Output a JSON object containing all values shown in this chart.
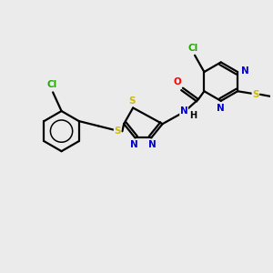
{
  "background_color": "#ebebeb",
  "figsize": [
    3.0,
    3.0
  ],
  "dpi": 100,
  "colors": {
    "C": "#000000",
    "N": "#0000cc",
    "O": "#ff0000",
    "S": "#ccbb00",
    "Cl": "#22aa00",
    "H": "#000000",
    "bond": "#000000"
  },
  "lw": 1.6,
  "fs": 7.5
}
